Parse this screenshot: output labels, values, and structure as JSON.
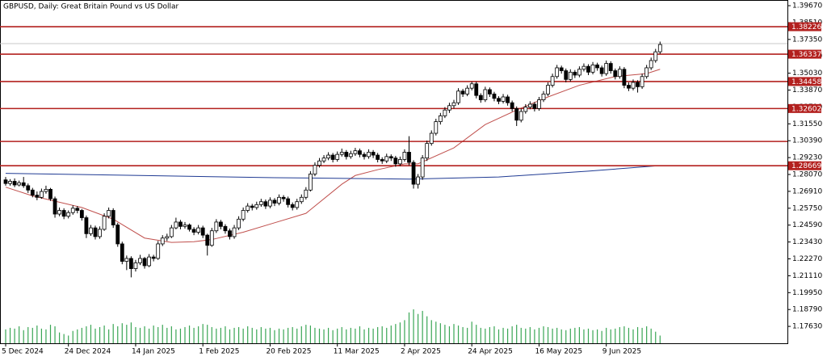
{
  "chart_data": {
    "type": "candlestick",
    "title": "GBPUSD, Daily:  Great Britain Pound vs US Dollar",
    "ylim": [
      1.1647,
      1.4006
    ],
    "yticks": [
      {
        "value": 1.3967,
        "label": "1.39670"
      },
      {
        "value": 1.3851,
        "label": "1.38510"
      },
      {
        "value": 1.3735,
        "label": "1.37350"
      },
      {
        "value": 1.3619,
        "label": "1.36190"
      },
      {
        "value": 1.3503,
        "label": "1.35030"
      },
      {
        "value": 1.3387,
        "label": "1.33870"
      },
      {
        "value": 1.3271,
        "label": "1.32710"
      },
      {
        "value": 1.3155,
        "label": "1.31550"
      },
      {
        "value": 1.3039,
        "label": "1.30390"
      },
      {
        "value": 1.2923,
        "label": "1.29230"
      },
      {
        "value": 1.2807,
        "label": "1.28070"
      },
      {
        "value": 1.2691,
        "label": "1.26910"
      },
      {
        "value": 1.2575,
        "label": "1.25750"
      },
      {
        "value": 1.2459,
        "label": "1.24590"
      },
      {
        "value": 1.2343,
        "label": "1.23430"
      },
      {
        "value": 1.2227,
        "label": "1.22270"
      },
      {
        "value": 1.2111,
        "label": "1.21110"
      },
      {
        "value": 1.1995,
        "label": "1.19950"
      },
      {
        "value": 1.1879,
        "label": "1.18790"
      },
      {
        "value": 1.1763,
        "label": "1.17630"
      }
    ],
    "xticks": [
      {
        "value": 0,
        "label": "5 Dec 2024"
      },
      {
        "value": 14,
        "label": "24 Dec 2024"
      },
      {
        "value": 29,
        "label": "14 Jan 2025"
      },
      {
        "value": 44,
        "label": "1 Feb 2025"
      },
      {
        "value": 59,
        "label": "20 Feb 2025"
      },
      {
        "value": 74,
        "label": "11 Mar 2025"
      },
      {
        "value": 89,
        "label": "2 Apr 2025"
      },
      {
        "value": 104,
        "label": "24 Apr 2025"
      },
      {
        "value": 119,
        "label": "16 May 2025"
      },
      {
        "value": 134,
        "label": "9 Jun 2025"
      }
    ],
    "levels": [
      1.38226,
      1.36337,
      1.34458,
      1.32602,
      1.28669
    ],
    "unlabeled_levels": [
      1.3034
    ],
    "level_color": "#b3201e",
    "current_price": 1.3706,
    "up_color": "#ffffff",
    "down_color": "#000000",
    "volume_color": "#3aa655",
    "candles": [
      [
        1.277,
        1.279,
        1.273,
        1.2745
      ],
      [
        1.2745,
        1.2775,
        1.273,
        1.276
      ],
      [
        1.276,
        1.278,
        1.272,
        1.2735
      ],
      [
        1.2735,
        1.2765,
        1.2725,
        1.275
      ],
      [
        1.275,
        1.279,
        1.2715,
        1.273
      ],
      [
        1.273,
        1.2745,
        1.268,
        1.27
      ],
      [
        1.27,
        1.2715,
        1.265,
        1.2665
      ],
      [
        1.2665,
        1.269,
        1.263,
        1.265
      ],
      [
        1.265,
        1.271,
        1.264,
        1.269
      ],
      [
        1.269,
        1.273,
        1.2675,
        1.2705
      ],
      [
        1.2705,
        1.2715,
        1.2625,
        1.264
      ],
      [
        1.264,
        1.2655,
        1.251,
        1.2535
      ],
      [
        1.2535,
        1.258,
        1.252,
        1.256
      ],
      [
        1.256,
        1.2575,
        1.25,
        1.252
      ],
      [
        1.252,
        1.256,
        1.2505,
        1.2545
      ],
      [
        1.2545,
        1.2595,
        1.253,
        1.2575
      ],
      [
        1.2575,
        1.259,
        1.254,
        1.256
      ],
      [
        1.256,
        1.257,
        1.249,
        1.251
      ],
      [
        1.251,
        1.2525,
        1.237,
        1.24
      ],
      [
        1.24,
        1.246,
        1.2385,
        1.244
      ],
      [
        1.244,
        1.2455,
        1.236,
        1.238
      ],
      [
        1.238,
        1.245,
        1.2365,
        1.243
      ],
      [
        1.243,
        1.254,
        1.242,
        1.252
      ],
      [
        1.252,
        1.258,
        1.2505,
        1.256
      ],
      [
        1.256,
        1.2575,
        1.244,
        1.246
      ],
      [
        1.246,
        1.2475,
        1.231,
        1.233
      ],
      [
        1.233,
        1.2345,
        1.219,
        1.221
      ],
      [
        1.221,
        1.225,
        1.215,
        1.223
      ],
      [
        1.223,
        1.2245,
        1.21,
        1.216
      ],
      [
        1.216,
        1.222,
        1.214,
        1.22
      ],
      [
        1.22,
        1.2255,
        1.2185,
        1.223
      ],
      [
        1.223,
        1.224,
        1.216,
        1.218
      ],
      [
        1.218,
        1.226,
        1.217,
        1.224
      ],
      [
        1.224,
        1.2255,
        1.221,
        1.223
      ],
      [
        1.223,
        1.235,
        1.222,
        1.233
      ],
      [
        1.233,
        1.239,
        1.2315,
        1.237
      ],
      [
        1.237,
        1.24,
        1.235,
        1.238
      ],
      [
        1.238,
        1.246,
        1.237,
        1.244
      ],
      [
        1.244,
        1.251,
        1.243,
        1.248
      ],
      [
        1.248,
        1.2495,
        1.243,
        1.245
      ],
      [
        1.245,
        1.248,
        1.2435,
        1.246
      ],
      [
        1.246,
        1.247,
        1.2415,
        1.243
      ],
      [
        1.243,
        1.2445,
        1.239,
        1.241
      ],
      [
        1.241,
        1.246,
        1.2395,
        1.244
      ],
      [
        1.244,
        1.2455,
        1.237,
        1.239
      ],
      [
        1.239,
        1.24,
        1.225,
        1.232
      ],
      [
        1.232,
        1.244,
        1.231,
        1.242
      ],
      [
        1.242,
        1.25,
        1.2405,
        1.248
      ],
      [
        1.248,
        1.2495,
        1.243,
        1.245
      ],
      [
        1.245,
        1.2465,
        1.24,
        1.242
      ],
      [
        1.242,
        1.2435,
        1.236,
        1.238
      ],
      [
        1.238,
        1.246,
        1.2365,
        1.244
      ],
      [
        1.244,
        1.252,
        1.2425,
        1.25
      ],
      [
        1.25,
        1.258,
        1.2485,
        1.256
      ],
      [
        1.256,
        1.261,
        1.2545,
        1.259
      ],
      [
        1.259,
        1.2605,
        1.256,
        1.258
      ],
      [
        1.258,
        1.262,
        1.2565,
        1.26
      ],
      [
        1.26,
        1.264,
        1.2585,
        1.262
      ],
      [
        1.262,
        1.2635,
        1.257,
        1.259
      ],
      [
        1.259,
        1.265,
        1.2575,
        1.263
      ],
      [
        1.263,
        1.2645,
        1.259,
        1.261
      ],
      [
        1.261,
        1.267,
        1.2595,
        1.265
      ],
      [
        1.265,
        1.2665,
        1.262,
        1.264
      ],
      [
        1.264,
        1.2655,
        1.258,
        1.26
      ],
      [
        1.26,
        1.2615,
        1.256,
        1.258
      ],
      [
        1.258,
        1.264,
        1.2565,
        1.262
      ],
      [
        1.262,
        1.267,
        1.2605,
        1.265
      ],
      [
        1.265,
        1.272,
        1.2635,
        1.27
      ],
      [
        1.27,
        1.283,
        1.269,
        1.281
      ],
      [
        1.281,
        1.289,
        1.2795,
        1.287
      ],
      [
        1.287,
        1.292,
        1.2855,
        1.29
      ],
      [
        1.29,
        1.294,
        1.2885,
        1.292
      ],
      [
        1.292,
        1.296,
        1.2905,
        1.294
      ],
      [
        1.294,
        1.2955,
        1.289,
        1.291
      ],
      [
        1.291,
        1.2965,
        1.2895,
        1.2945
      ],
      [
        1.2945,
        1.2985,
        1.293,
        1.296
      ],
      [
        1.296,
        1.2975,
        1.291,
        1.293
      ],
      [
        1.293,
        1.297,
        1.2915,
        1.295
      ],
      [
        1.295,
        1.299,
        1.2935,
        1.297
      ],
      [
        1.297,
        1.2985,
        1.2925,
        1.2945
      ],
      [
        1.2945,
        1.296,
        1.291,
        1.293
      ],
      [
        1.293,
        1.298,
        1.2915,
        1.296
      ],
      [
        1.296,
        1.2975,
        1.292,
        1.294
      ],
      [
        1.294,
        1.2955,
        1.289,
        1.291
      ],
      [
        1.291,
        1.2925,
        1.288,
        1.29
      ],
      [
        1.29,
        1.295,
        1.2885,
        1.293
      ],
      [
        1.293,
        1.2945,
        1.29,
        1.292
      ],
      [
        1.292,
        1.2935,
        1.286,
        1.288
      ],
      [
        1.288,
        1.293,
        1.2865,
        1.291
      ],
      [
        1.291,
        1.298,
        1.2895,
        1.296
      ],
      [
        1.296,
        1.307,
        1.287,
        1.289
      ],
      [
        1.289,
        1.2905,
        1.271,
        1.274
      ],
      [
        1.274,
        1.281,
        1.271,
        1.279
      ],
      [
        1.279,
        1.294,
        1.277,
        1.292
      ],
      [
        1.292,
        1.304,
        1.29,
        1.302
      ],
      [
        1.302,
        1.311,
        1.3005,
        1.309
      ],
      [
        1.309,
        1.319,
        1.3075,
        1.317
      ],
      [
        1.317,
        1.323,
        1.315,
        1.321
      ],
      [
        1.321,
        1.327,
        1.3195,
        1.325
      ],
      [
        1.325,
        1.33,
        1.323,
        1.328
      ],
      [
        1.328,
        1.332,
        1.326,
        1.33
      ],
      [
        1.33,
        1.34,
        1.3285,
        1.338
      ],
      [
        1.338,
        1.3395,
        1.334,
        1.336
      ],
      [
        1.336,
        1.342,
        1.3345,
        1.34
      ],
      [
        1.34,
        1.3445,
        1.3385,
        1.343
      ],
      [
        1.343,
        1.3445,
        1.333,
        1.335
      ],
      [
        1.335,
        1.3365,
        1.33,
        1.332
      ],
      [
        1.332,
        1.341,
        1.3305,
        1.339
      ],
      [
        1.339,
        1.3405,
        1.334,
        1.336
      ],
      [
        1.336,
        1.3375,
        1.331,
        1.333
      ],
      [
        1.333,
        1.3345,
        1.329,
        1.331
      ],
      [
        1.331,
        1.336,
        1.3295,
        1.334
      ],
      [
        1.334,
        1.3355,
        1.328,
        1.33
      ],
      [
        1.33,
        1.3315,
        1.324,
        1.326
      ],
      [
        1.326,
        1.3275,
        1.314,
        1.318
      ],
      [
        1.318,
        1.326,
        1.3165,
        1.324
      ],
      [
        1.324,
        1.329,
        1.3225,
        1.327
      ],
      [
        1.327,
        1.331,
        1.3255,
        1.329
      ],
      [
        1.329,
        1.3305,
        1.324,
        1.326
      ],
      [
        1.326,
        1.334,
        1.3245,
        1.332
      ],
      [
        1.332,
        1.338,
        1.3305,
        1.336
      ],
      [
        1.336,
        1.344,
        1.3345,
        1.342
      ],
      [
        1.342,
        1.35,
        1.3405,
        1.348
      ],
      [
        1.348,
        1.356,
        1.3465,
        1.354
      ],
      [
        1.354,
        1.3555,
        1.35,
        1.352
      ],
      [
        1.352,
        1.3535,
        1.344,
        1.346
      ],
      [
        1.346,
        1.353,
        1.3445,
        1.351
      ],
      [
        1.351,
        1.3525,
        1.347,
        1.349
      ],
      [
        1.349,
        1.355,
        1.3475,
        1.353
      ],
      [
        1.353,
        1.357,
        1.3515,
        1.355
      ],
      [
        1.355,
        1.3565,
        1.349,
        1.351
      ],
      [
        1.351,
        1.358,
        1.3495,
        1.356
      ],
      [
        1.356,
        1.3575,
        1.352,
        1.354
      ],
      [
        1.354,
        1.3555,
        1.348,
        1.35
      ],
      [
        1.35,
        1.359,
        1.3485,
        1.357
      ],
      [
        1.357,
        1.3585,
        1.35,
        1.352
      ],
      [
        1.352,
        1.3535,
        1.346,
        1.348
      ],
      [
        1.348,
        1.355,
        1.3465,
        1.353
      ],
      [
        1.353,
        1.3545,
        1.34,
        1.342
      ],
      [
        1.342,
        1.344,
        1.338,
        1.34
      ],
      [
        1.34,
        1.346,
        1.3385,
        1.344
      ],
      [
        1.344,
        1.3455,
        1.337,
        1.341
      ],
      [
        1.341,
        1.35,
        1.3395,
        1.348
      ],
      [
        1.348,
        1.356,
        1.3465,
        1.354
      ],
      [
        1.354,
        1.361,
        1.3525,
        1.359
      ],
      [
        1.359,
        1.367,
        1.3575,
        1.365
      ],
      [
        1.365,
        1.372,
        1.3635,
        1.37
      ]
    ],
    "volumes": [
      18,
      20,
      19,
      22,
      17,
      21,
      20,
      23,
      19,
      18,
      24,
      22,
      14,
      12,
      10,
      16,
      18,
      20,
      22,
      24,
      19,
      21,
      23,
      18,
      25,
      22,
      26,
      24,
      27,
      21,
      20,
      22,
      19,
      23,
      21,
      24,
      20,
      22,
      18,
      19,
      21,
      23,
      20,
      22,
      25,
      24,
      21,
      19,
      20,
      22,
      18,
      20,
      21,
      19,
      22,
      20,
      18,
      21,
      19,
      20,
      17,
      19,
      18,
      20,
      21,
      19,
      22,
      24,
      23,
      20,
      19,
      18,
      20,
      17,
      19,
      21,
      18,
      20,
      19,
      22,
      18,
      20,
      19,
      21,
      22,
      20,
      23,
      25,
      27,
      30,
      40,
      44,
      38,
      42,
      35,
      30,
      28,
      26,
      24,
      22,
      25,
      23,
      21,
      20,
      28,
      24,
      20,
      19,
      21,
      22,
      18,
      20,
      19,
      22,
      24,
      20,
      19,
      21,
      18,
      20,
      22,
      21,
      19,
      20,
      18,
      17,
      19,
      20,
      21,
      18,
      19,
      17,
      18,
      16,
      20,
      18,
      19,
      21,
      22,
      20,
      18,
      21,
      20,
      22,
      19,
      15,
      10
    ],
    "series": [
      {
        "color": "#c0504d",
        "x": [
          0,
          6,
          17,
          24,
          31,
          37,
          42,
          46,
          53,
          60,
          67,
          75,
          78,
          83,
          89,
          92,
          100,
          107,
          114,
          121,
          128,
          136,
          143,
          146
        ],
        "values": [
          1.272,
          1.266,
          1.258,
          1.25,
          1.237,
          1.234,
          1.2345,
          1.236,
          1.241,
          1.2475,
          1.254,
          1.274,
          1.28,
          1.284,
          1.288,
          1.288,
          1.299,
          1.315,
          1.325,
          1.334,
          1.342,
          1.348,
          1.35,
          1.353
        ]
      },
      {
        "color": "#1f3a93",
        "x": [
          0,
          30,
          60,
          90,
          110,
          130,
          146
        ],
        "values": [
          1.2815,
          1.28,
          1.2785,
          1.2775,
          1.279,
          1.283,
          1.2868
        ]
      }
    ]
  }
}
